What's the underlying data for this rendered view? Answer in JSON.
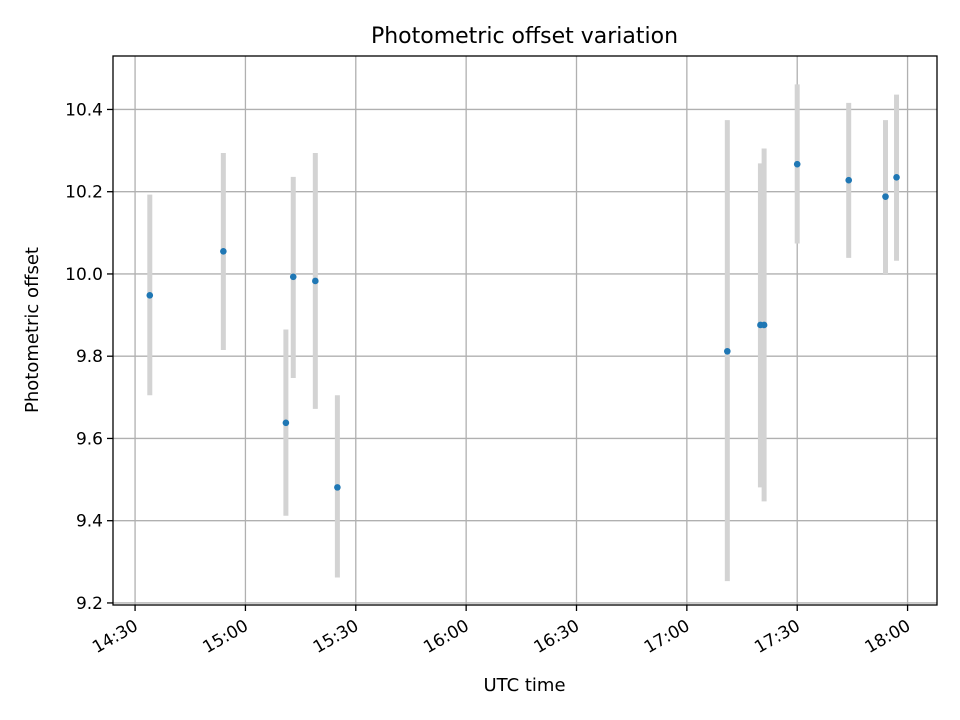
{
  "chart_data": {
    "type": "scatter",
    "title": "Photometric offset variation",
    "xlabel": "UTC time",
    "ylabel": "Photometric offset",
    "grid": true,
    "legend": "none",
    "xlim": [
      "14:24",
      "18:08"
    ],
    "ylim": [
      9.195,
      10.53
    ],
    "x_ticks": [
      "14:30",
      "15:00",
      "15:30",
      "16:00",
      "16:30",
      "17:00",
      "17:30",
      "18:00"
    ],
    "y_ticks": [
      "9.2",
      "9.4",
      "9.6",
      "9.8",
      "10.0",
      "10.2",
      "10.4"
    ],
    "series": [
      {
        "x": [
          "14:34",
          "14:54",
          "15:11",
          "15:13",
          "15:19",
          "15:25",
          "17:11",
          "17:20",
          "17:21",
          "17:30",
          "17:44",
          "17:54",
          "17:57"
        ],
        "y": [
          9.948,
          10.055,
          9.638,
          9.993,
          9.983,
          9.481,
          9.812,
          9.876,
          9.876,
          10.267,
          10.228,
          10.188,
          10.235
        ],
        "error_low": [
          9.705,
          9.815,
          9.412,
          9.747,
          9.672,
          9.262,
          9.253,
          9.481,
          9.447,
          10.074,
          10.039,
          10.0,
          10.032
        ],
        "error_high": [
          10.193,
          10.294,
          9.865,
          10.236,
          10.294,
          9.705,
          10.374,
          10.269,
          10.305,
          10.461,
          10.416,
          10.374,
          10.436
        ]
      }
    ],
    "colors": {
      "marker": "#1f77b4",
      "errorbar": "#d3d3d3",
      "grid": "#b0b0b0",
      "axes": "#000000"
    }
  }
}
